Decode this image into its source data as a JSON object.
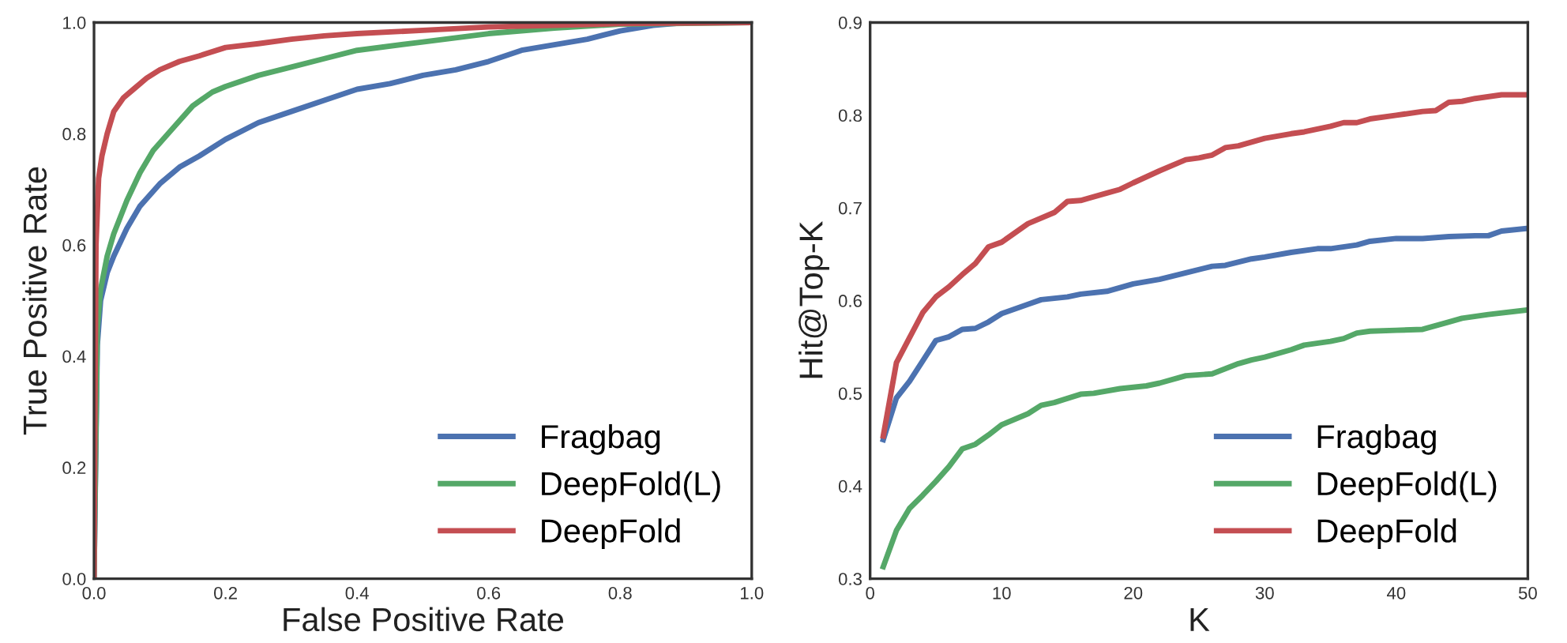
{
  "chart_data": [
    {
      "type": "line",
      "xlabel": "False Positive Rate",
      "ylabel": "True Positive Rate",
      "xlim": [
        0,
        1
      ],
      "ylim": [
        0,
        1
      ],
      "xticks": [
        {
          "value": 0,
          "label": "0.0"
        },
        0.2,
        0.4,
        0.6,
        0.8,
        {
          "value": 1,
          "label": "1.0"
        }
      ],
      "yticks": [
        {
          "value": 0,
          "label": "0.0"
        },
        0.2,
        0.4,
        0.6,
        0.8,
        {
          "value": 1,
          "label": "1.0"
        }
      ],
      "grid": false,
      "legend": "bottom right",
      "marker": "none",
      "line_style": "solid",
      "series": [
        {
          "name": "Fragbag",
          "color": "#4c72b0",
          "x": [
            0,
            0.005,
            0.01,
            0.02,
            0.03,
            0.05,
            0.07,
            0.1,
            0.13,
            0.16,
            0.2,
            0.25,
            0.3,
            0.35,
            0.4,
            0.45,
            0.5,
            0.55,
            0.6,
            0.65,
            0.7,
            0.75,
            0.8,
            0.85,
            0.9,
            1.0
          ],
          "values": [
            0,
            0.42,
            0.5,
            0.55,
            0.58,
            0.63,
            0.67,
            0.71,
            0.74,
            0.76,
            0.79,
            0.82,
            0.84,
            0.86,
            0.88,
            0.89,
            0.905,
            0.915,
            0.93,
            0.95,
            0.96,
            0.97,
            0.985,
            0.995,
            1.0,
            1.0
          ]
        },
        {
          "name": "DeepFold(L)",
          "color": "#55a868",
          "x": [
            0,
            0.005,
            0.01,
            0.02,
            0.03,
            0.05,
            0.07,
            0.09,
            0.12,
            0.15,
            0.18,
            0.2,
            0.25,
            0.3,
            0.35,
            0.4,
            0.5,
            0.6,
            0.7,
            0.8,
            1.0
          ],
          "values": [
            0,
            0.45,
            0.52,
            0.58,
            0.62,
            0.68,
            0.73,
            0.77,
            0.81,
            0.85,
            0.875,
            0.885,
            0.905,
            0.92,
            0.935,
            0.95,
            0.965,
            0.98,
            0.99,
            0.997,
            1.0
          ]
        },
        {
          "name": "DeepFold",
          "color": "#c44e52",
          "x": [
            0,
            0.003,
            0.007,
            0.012,
            0.02,
            0.03,
            0.045,
            0.06,
            0.08,
            0.1,
            0.13,
            0.16,
            0.2,
            0.25,
            0.3,
            0.35,
            0.4,
            0.5,
            0.6,
            0.8,
            1.0
          ],
          "values": [
            0,
            0.6,
            0.72,
            0.76,
            0.8,
            0.84,
            0.865,
            0.88,
            0.9,
            0.915,
            0.93,
            0.94,
            0.955,
            0.962,
            0.97,
            0.976,
            0.98,
            0.986,
            0.992,
            0.998,
            1.0
          ]
        }
      ]
    },
    {
      "type": "line",
      "xlabel": "K",
      "ylabel": "Hit@Top-K",
      "xlim": [
        0,
        50
      ],
      "ylim": [
        0.3,
        0.9
      ],
      "xticks": [
        0,
        10,
        20,
        30,
        40,
        50
      ],
      "yticks": [
        0.3,
        0.4,
        0.5,
        0.6,
        0.7,
        0.8,
        0.9
      ],
      "grid": false,
      "legend": "bottom right",
      "marker": "none",
      "line_style": "solid",
      "series": [
        {
          "name": "Fragbag",
          "color": "#4c72b0",
          "x": [
            1,
            2,
            3,
            4,
            5,
            6,
            7,
            8,
            9,
            10,
            12,
            13,
            15,
            16,
            18,
            20,
            22,
            24,
            26,
            27,
            29,
            30,
            32,
            34,
            35,
            37,
            38,
            40,
            42,
            44,
            46,
            47,
            48,
            50
          ],
          "values": [
            0.45,
            0.495,
            0.513,
            0.535,
            0.557,
            0.561,
            0.569,
            0.57,
            0.577,
            0.586,
            0.596,
            0.601,
            0.604,
            0.607,
            0.61,
            0.618,
            0.623,
            0.63,
            0.637,
            0.638,
            0.645,
            0.647,
            0.652,
            0.656,
            0.656,
            0.66,
            0.664,
            0.667,
            0.667,
            0.669,
            0.67,
            0.67,
            0.675,
            0.678
          ]
        },
        {
          "name": "DeepFold(L)",
          "color": "#55a868",
          "x": [
            1,
            2,
            3,
            4,
            5,
            6,
            7,
            8,
            9,
            10,
            12,
            13,
            14,
            16,
            17,
            19,
            21,
            22,
            24,
            26,
            28,
            29,
            30,
            32,
            33,
            35,
            36,
            37,
            38,
            40,
            42,
            44,
            45,
            47,
            50
          ],
          "values": [
            0.313,
            0.352,
            0.376,
            0.39,
            0.405,
            0.421,
            0.44,
            0.445,
            0.455,
            0.466,
            0.478,
            0.487,
            0.49,
            0.499,
            0.5,
            0.505,
            0.508,
            0.511,
            0.519,
            0.521,
            0.532,
            0.536,
            0.539,
            0.547,
            0.552,
            0.556,
            0.559,
            0.565,
            0.567,
            0.568,
            0.569,
            0.577,
            0.581,
            0.585,
            0.59
          ]
        },
        {
          "name": "DeepFold",
          "color": "#c44e52",
          "x": [
            1,
            2,
            3,
            4,
            5,
            6,
            7,
            8,
            9,
            10,
            12,
            14,
            15,
            16,
            18,
            19,
            20,
            22,
            24,
            25,
            26,
            27,
            28,
            30,
            32,
            33,
            35,
            36,
            37,
            38,
            40,
            42,
            43,
            44,
            45,
            46,
            48,
            50
          ],
          "values": [
            0.454,
            0.533,
            0.56,
            0.587,
            0.604,
            0.615,
            0.628,
            0.64,
            0.658,
            0.663,
            0.683,
            0.695,
            0.707,
            0.708,
            0.716,
            0.72,
            0.727,
            0.74,
            0.752,
            0.754,
            0.757,
            0.765,
            0.767,
            0.775,
            0.78,
            0.782,
            0.788,
            0.792,
            0.792,
            0.796,
            0.8,
            0.804,
            0.805,
            0.814,
            0.815,
            0.818,
            0.822,
            0.822
          ]
        }
      ]
    }
  ]
}
